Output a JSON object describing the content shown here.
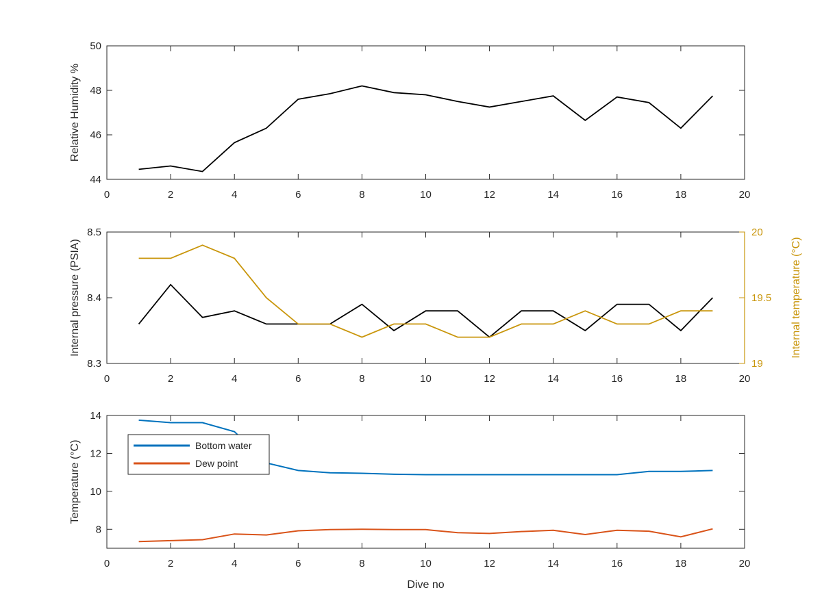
{
  "chart_data": [
    {
      "type": "line",
      "xlabel": "",
      "ylabel": "Relative Humidity %",
      "xlim": [
        0,
        20
      ],
      "ylim": [
        44,
        50
      ],
      "xticks": [
        0,
        2,
        4,
        6,
        8,
        10,
        12,
        14,
        16,
        18,
        20
      ],
      "yticks": [
        44,
        46,
        48,
        50
      ],
      "grid": false,
      "series": [
        {
          "color": "#000000",
          "x": [
            1,
            2,
            3,
            4,
            5,
            6,
            7,
            8,
            9,
            10,
            11,
            12,
            13,
            14,
            15,
            16,
            17,
            18,
            19
          ],
          "values": [
            44.45,
            44.6,
            44.35,
            45.65,
            46.3,
            47.6,
            47.85,
            48.2,
            47.9,
            47.8,
            47.5,
            47.25,
            47.5,
            47.75,
            46.65,
            47.7,
            47.45,
            46.3,
            47.75
          ]
        }
      ]
    },
    {
      "type": "line",
      "xlabel": "",
      "ylabel": "Internal pressure (PSIA)",
      "y2label": "Internal temperature (°C)",
      "xlim": [
        0,
        20
      ],
      "ylim": [
        8.3,
        8.5
      ],
      "y2lim": [
        19,
        20
      ],
      "xticks": [
        0,
        2,
        4,
        6,
        8,
        10,
        12,
        14,
        16,
        18,
        20
      ],
      "yticks": [
        8.3,
        8.4,
        8.5
      ],
      "y2ticks": [
        19,
        19.5,
        20
      ],
      "y2color": "#C9960C",
      "grid": false,
      "series": [
        {
          "color": "#000000",
          "axis": "left",
          "x": [
            1,
            2,
            3,
            4,
            5,
            6,
            7,
            8,
            9,
            10,
            11,
            12,
            13,
            14,
            15,
            16,
            17,
            18,
            19
          ],
          "values": [
            8.36,
            8.42,
            8.37,
            8.38,
            8.36,
            8.36,
            8.36,
            8.39,
            8.35,
            8.38,
            8.38,
            8.34,
            8.38,
            8.38,
            8.35,
            8.39,
            8.39,
            8.35,
            8.4
          ]
        },
        {
          "color": "#C9960C",
          "axis": "right",
          "x": [
            1,
            2,
            3,
            4,
            5,
            6,
            7,
            8,
            9,
            10,
            11,
            12,
            13,
            14,
            15,
            16,
            17,
            18,
            19
          ],
          "values": [
            19.8,
            19.8,
            19.9,
            19.8,
            19.5,
            19.3,
            19.3,
            19.2,
            19.3,
            19.3,
            19.2,
            19.2,
            19.3,
            19.3,
            19.4,
            19.3,
            19.3,
            19.4,
            19.4
          ]
        }
      ]
    },
    {
      "type": "line",
      "xlabel": "Dive no",
      "ylabel": "Temperature (°C)",
      "xlim": [
        0,
        20
      ],
      "ylim": [
        7,
        14
      ],
      "xticks": [
        0,
        2,
        4,
        6,
        8,
        10,
        12,
        14,
        16,
        18,
        20
      ],
      "yticks": [
        8,
        10,
        12,
        14
      ],
      "grid": false,
      "legend_position": "top-left",
      "series": [
        {
          "name": "Bottom water",
          "color": "#0072BD",
          "x": [
            1,
            2,
            3,
            4,
            5,
            6,
            7,
            8,
            9,
            10,
            11,
            12,
            13,
            14,
            15,
            16,
            17,
            18,
            19
          ],
          "values": [
            13.75,
            13.62,
            13.62,
            13.15,
            11.5,
            11.1,
            10.98,
            10.95,
            10.9,
            10.88,
            10.88,
            10.88,
            10.88,
            10.88,
            10.88,
            10.88,
            11.05,
            11.05,
            11.1
          ]
        },
        {
          "name": "Dew point",
          "color": "#D95319",
          "x": [
            1,
            2,
            3,
            4,
            5,
            6,
            7,
            8,
            9,
            10,
            11,
            12,
            13,
            14,
            15,
            16,
            17,
            18,
            19
          ],
          "values": [
            7.35,
            7.4,
            7.45,
            7.75,
            7.7,
            7.92,
            7.98,
            8.0,
            7.98,
            7.98,
            7.82,
            7.78,
            7.88,
            7.95,
            7.72,
            7.95,
            7.9,
            7.6,
            8.02
          ]
        }
      ]
    }
  ]
}
